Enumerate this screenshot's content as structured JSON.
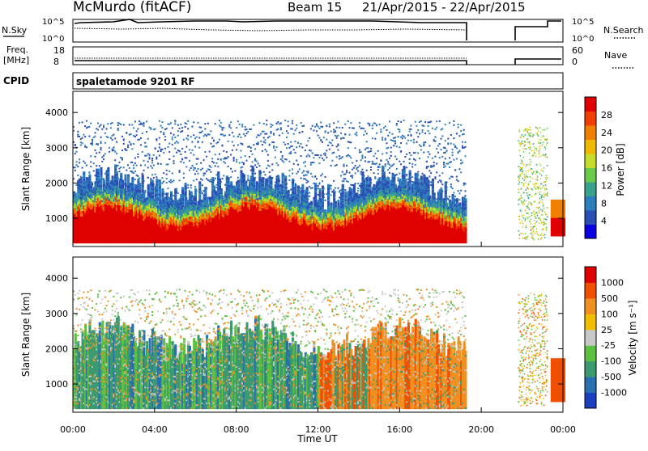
{
  "header": {
    "station": "McMurdo (fitACF)",
    "beam": "Beam 15",
    "date_range": "21/Apr/2015 - 22/Apr/2015"
  },
  "top_panels": {
    "nsky_label": "N.Sky",
    "nsky_ticks": [
      "10^5",
      "10^0"
    ],
    "nsearch_label": "N.Search",
    "nsearch_ticks": [
      "10^5",
      "10^0"
    ],
    "freq_label_1": "Freq.",
    "freq_label_2": "[MHz]",
    "freq_ticks": [
      "18",
      "8"
    ],
    "nave_label": "Nave",
    "nave_ticks": [
      "60",
      "0"
    ],
    "cpid_label": "CPID",
    "cpid_value": "spaletamode 9201 RF"
  },
  "chart_data": [
    {
      "type": "heatmap",
      "name": "power-panel",
      "ylabel": "Slant Range [km]",
      "ylim": [
        200,
        4600
      ],
      "yticks": [
        "1000",
        "2000",
        "3000",
        "4000"
      ],
      "colorbar_label": "Power [dB]",
      "colorbar_ticks": [
        "28",
        "24",
        "20",
        "16",
        "12",
        "8",
        "4"
      ],
      "colors": [
        "#0a00e0",
        "#2a4fb4",
        "#2e7dbd",
        "#3aa28a",
        "#6ac84a",
        "#c8dc2c",
        "#f0b800",
        "#f08000",
        "#f04000",
        "#e00000"
      ]
    },
    {
      "type": "heatmap",
      "name": "velocity-panel",
      "ylabel": "Slant Range [km]",
      "ylim": [
        200,
        4600
      ],
      "yticks": [
        "1000",
        "2000",
        "3000",
        "4000"
      ],
      "colorbar_label": "Velocity [m s⁻¹]",
      "colorbar_ticks": [
        "1000",
        "500",
        "100",
        "25",
        "-25",
        "-100",
        "-500",
        "-1000"
      ],
      "colors": [
        "#1a40c0",
        "#2a70b0",
        "#3c9a70",
        "#5cc040",
        "#c8c8c8",
        "#f0c000",
        "#f09020",
        "#f05000",
        "#e00000"
      ],
      "x_ticks": [
        "00:00",
        "04:00",
        "08:00",
        "12:00",
        "16:00",
        "20:00",
        "00:00"
      ],
      "xlabel": "Time UT"
    }
  ]
}
